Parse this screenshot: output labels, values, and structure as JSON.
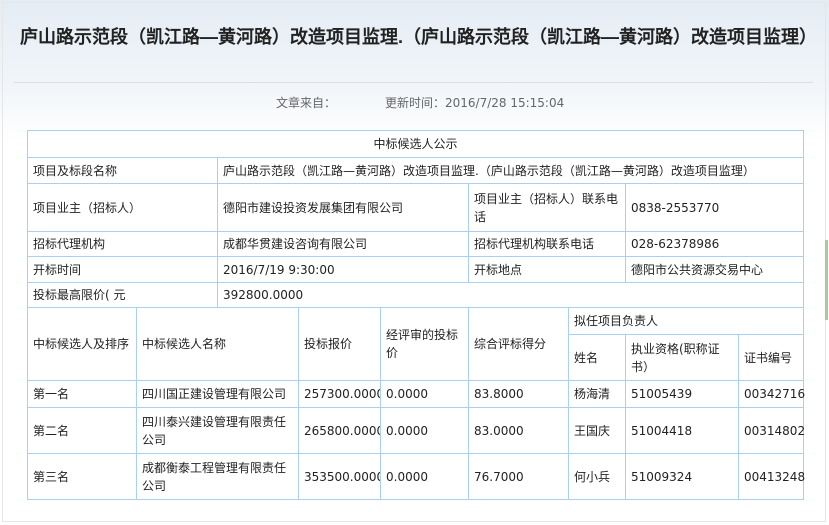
{
  "title": "庐山路示范段（凯江路—黄河路）改造项目监理.（庐山路示范段（凯江路—黄河路）改造项目监理）",
  "meta": {
    "source_label": "文章来自：",
    "updated": "更新时间：2016/7/28 15:15:04"
  },
  "table": {
    "caption": "中标候选人公示",
    "info": [
      [
        "项目及标段名称",
        "庐山路示范段（凯江路—黄河路）改造项目监理.（庐山路示范段（凯江路—黄河路）改造项目监理）"
      ],
      [
        "项目业主（招标人）",
        "德阳市建设投资发展集团有限公司",
        "项目业主（招标人）联系电话",
        "0838-2553770"
      ],
      [
        "招标代理机构",
        "成都华贯建设咨询有限公司",
        "招标代理机构联系电话",
        "028-62378986"
      ],
      [
        "开标时间",
        "2016/7/19 9:30:00",
        "开标地点",
        "德阳市公共资源交易中心"
      ],
      [
        "投标最高限价( 元",
        "392800.0000"
      ]
    ],
    "headers": [
      "中标候选人及排序",
      "中标候选人名称",
      "投标报价",
      "经评审的投标价",
      "综合评标得分",
      "拟任项目负责人",
      "姓名",
      "执业资格(职称证书）",
      "证书编号"
    ],
    "rows": [
      [
        "第一名",
        "四川国正建设管理有限公司",
        "257300.0000",
        "0.0000",
        "83.8000",
        "杨海清",
        "51005439",
        "00342716"
      ],
      [
        "第二名",
        "四川泰兴建设管理有限责任公司",
        "265800.0000",
        "0.0000",
        "83.0000",
        "王国庆",
        "51004418",
        "00314802"
      ],
      [
        "第三名",
        "成都衡泰工程管理有限责任公司",
        "353500.0000",
        "0.0000",
        "76.7000",
        "何小兵",
        "51009324",
        "00413248"
      ]
    ]
  }
}
